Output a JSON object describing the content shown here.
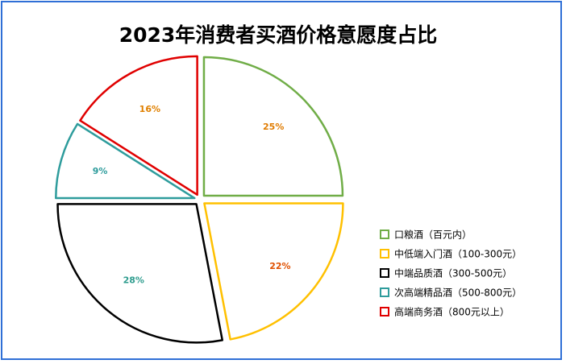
{
  "chart_data": {
    "type": "pie",
    "title": "2023年消费者买酒价格意愿度占比",
    "start_angle_deg": 0,
    "direction": "clockwise",
    "exploded": true,
    "legend_position": "right",
    "slices": [
      {
        "name": "口粮酒（百元内）",
        "value": 25,
        "label": "25%",
        "color": "#70ad47",
        "label_color": "#e07b00"
      },
      {
        "name": "中低端入门酒（100-300元）",
        "value": 22,
        "label": "22%",
        "color": "#ffc000",
        "label_color": "#e05000"
      },
      {
        "name": "中端品质酒（300-500元）",
        "value": 28,
        "label": "28%",
        "color": "#000000",
        "label_color": "#2e9c8e"
      },
      {
        "name": "次高端精品酒（500-800元）",
        "value": 9,
        "label": "9%",
        "color": "#2e9c9c",
        "label_color": "#2e9c9c"
      },
      {
        "name": "高端商务酒（800元以上）",
        "value": 16,
        "label": "16%",
        "color": "#e00000",
        "label_color": "#e08000"
      }
    ]
  }
}
